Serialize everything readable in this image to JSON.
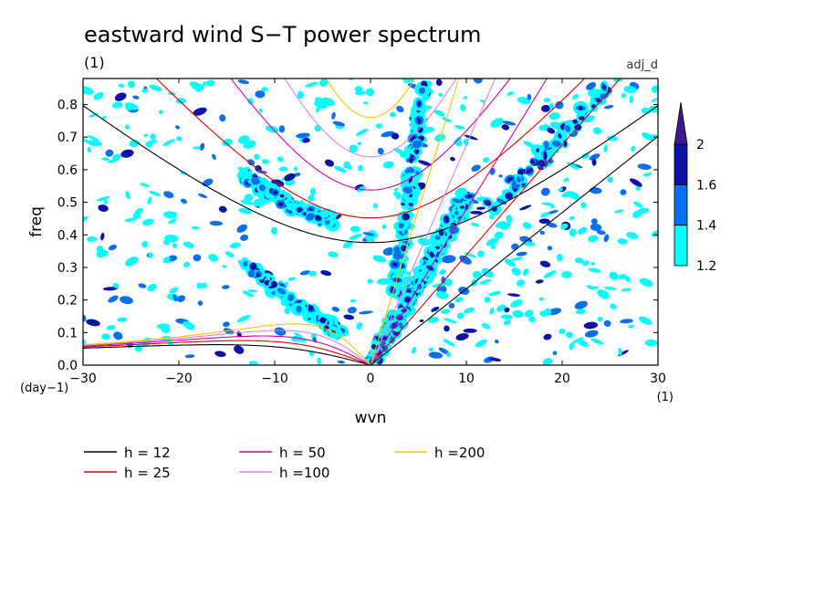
{
  "chart_data": {
    "type": "heatmap",
    "title": "eastward wind S−T power spectrum",
    "subtitle_left": "(1)",
    "subtitle_right": "adj_d",
    "xlabel": "wvn",
    "ylabel": "freq",
    "x_unit": "(1)",
    "y_unit": "(day−1)",
    "xlim": [
      -30,
      30
    ],
    "ylim": [
      0.0,
      0.88
    ],
    "xticks": [
      -30,
      -20,
      -10,
      0,
      10,
      20,
      30
    ],
    "yticks": [
      0.0,
      0.1,
      0.2,
      0.3,
      0.4,
      0.5,
      0.6,
      0.7,
      0.8
    ],
    "colorbar": {
      "levels": [
        1.2,
        1.4,
        1.6,
        2
      ],
      "colors": [
        "#00ffff",
        "#0a6ef0",
        "#0a14a8",
        "#3c1a8c"
      ],
      "extend": "max"
    },
    "dispersion_curves": {
      "label_prefix": "h =",
      "equivalent_depths": [
        {
          "label": "h = 12",
          "color": "#000000"
        },
        {
          "label": "h = 25",
          "color": "#e00000"
        },
        {
          "label": "h = 50",
          "color": "#d000a8"
        },
        {
          "label": "h =100",
          "color": "#e080e8"
        },
        {
          "label": "h =200",
          "color": "#f0c800"
        }
      ]
    }
  }
}
